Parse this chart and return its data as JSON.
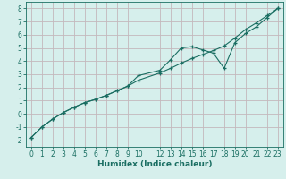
{
  "xlabel": "Humidex (Indice chaleur)",
  "xlim": [
    -0.5,
    23.5
  ],
  "ylim": [
    -2.5,
    8.5
  ],
  "xticks": [
    0,
    1,
    2,
    3,
    4,
    5,
    6,
    7,
    8,
    9,
    10,
    12,
    13,
    14,
    15,
    16,
    17,
    18,
    19,
    20,
    21,
    22,
    23
  ],
  "yticks": [
    -2,
    -1,
    0,
    1,
    2,
    3,
    4,
    5,
    6,
    7,
    8
  ],
  "bg_color": "#d6efec",
  "grid_color": "#c4b8bc",
  "line_color": "#1a6e62",
  "line1_x": [
    0,
    1,
    2,
    3,
    4,
    5,
    6,
    7,
    8,
    9,
    10,
    12,
    13,
    14,
    15,
    16,
    17,
    18,
    19,
    20,
    21,
    22,
    23
  ],
  "line1_y": [
    -1.8,
    -1.0,
    -0.4,
    0.1,
    0.5,
    0.85,
    1.1,
    1.4,
    1.75,
    2.1,
    2.55,
    3.1,
    3.45,
    3.85,
    4.2,
    4.5,
    4.8,
    5.15,
    5.75,
    6.4,
    6.9,
    7.45,
    8.0
  ],
  "line2_x": [
    0,
    1,
    2,
    3,
    4,
    5,
    6,
    7,
    8,
    9,
    10,
    12,
    13,
    14,
    15,
    16,
    17,
    18,
    19,
    20,
    21,
    22,
    23
  ],
  "line2_y": [
    -1.8,
    -1.0,
    -0.4,
    0.1,
    0.5,
    0.85,
    1.1,
    1.4,
    1.75,
    2.1,
    2.9,
    3.3,
    4.1,
    5.0,
    5.1,
    4.85,
    4.6,
    3.45,
    5.4,
    6.1,
    6.6,
    7.3,
    8.0
  ],
  "tick_fontsize": 5.5,
  "xlabel_fontsize": 6.5
}
